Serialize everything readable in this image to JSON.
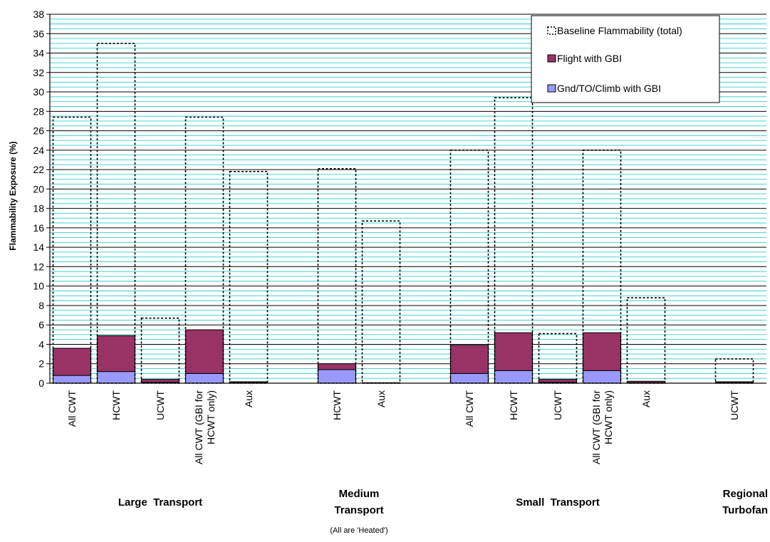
{
  "chart_data": {
    "type": "bar",
    "ylabel": "Flammability Exposure (%)",
    "ylim": [
      0,
      38
    ],
    "ytick_step": 2,
    "grid": true,
    "legend_position": "top-right",
    "colors": {
      "baseline": "#000000",
      "flight": "#993366",
      "ground": "#9999ff",
      "grid_major": "#000000",
      "grid_minor": "#33cccc"
    },
    "series": [
      {
        "name": "Baseline Flammability (total)",
        "key": "baseline",
        "style": "dashed-outline"
      },
      {
        "name": "Flight with GBI",
        "key": "flight",
        "style": "stacked-top"
      },
      {
        "name": "Gnd/TO/Climb with GBI",
        "key": "ground",
        "style": "stacked-bottom"
      }
    ],
    "groups": [
      {
        "name": "Large  Transport",
        "note": "",
        "bars": [
          {
            "label": "All CWT",
            "baseline": 27.4,
            "ground": 0.8,
            "flight": 2.8
          },
          {
            "label": "HCWT",
            "baseline": 35.0,
            "ground": 1.2,
            "flight": 3.7
          },
          {
            "label": "UCWT",
            "baseline": 6.7,
            "ground": 0.1,
            "flight": 0.3
          },
          {
            "label": "All CWT (GBI for HCWT only)",
            "baseline": 27.4,
            "ground": 1.0,
            "flight": 4.5
          },
          {
            "label": "Aux",
            "baseline": 21.8,
            "ground": 0.05,
            "flight": 0.1
          }
        ]
      },
      {
        "name": "Medium Transport",
        "note": "(All are 'Heated')",
        "bars": [
          {
            "label": "HCWT",
            "baseline": 22.1,
            "ground": 1.4,
            "flight": 0.6
          },
          {
            "label": "Aux",
            "baseline": 16.7,
            "ground": 0.0,
            "flight": 0.05
          }
        ]
      },
      {
        "name": "Small  Transport",
        "note": "",
        "bars": [
          {
            "label": "All CWT",
            "baseline": 24.0,
            "ground": 1.0,
            "flight": 2.9
          },
          {
            "label": "HCWT",
            "baseline": 29.4,
            "ground": 1.3,
            "flight": 3.9
          },
          {
            "label": "UCWT",
            "baseline": 5.1,
            "ground": 0.1,
            "flight": 0.3
          },
          {
            "label": "All CWT (GBI for HCWT only)",
            "baseline": 24.0,
            "ground": 1.3,
            "flight": 3.9
          },
          {
            "label": "Aux",
            "baseline": 8.8,
            "ground": 0.05,
            "flight": 0.15
          }
        ]
      },
      {
        "name": "Regional Turbofan",
        "note": "",
        "bars": [
          {
            "label": "UCWT",
            "baseline": 2.5,
            "ground": 0.05,
            "flight": 0.1
          }
        ]
      }
    ]
  }
}
